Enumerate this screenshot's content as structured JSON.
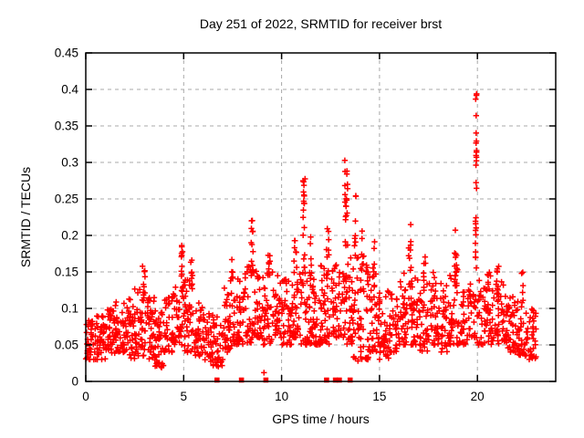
{
  "figure": {
    "title": "Day 251 of 2022, SRMTID for receiver brst",
    "xlabel": "GPS time / hours",
    "ylabel": "SRMTID / TECUs",
    "background_color": "#ffffff",
    "text_color": "#000000",
    "marker_color": "#ff0000",
    "grid_color": "#a8a8a8",
    "border_color": "#000000"
  },
  "axes": {
    "x": {
      "min": 0,
      "max": 24,
      "ticks": [
        [
          0,
          "0"
        ],
        [
          5,
          "5"
        ],
        [
          10,
          "10"
        ],
        [
          15,
          "15"
        ],
        [
          20,
          "20"
        ]
      ]
    },
    "y": {
      "min": 0,
      "max": 0.45,
      "ticks": [
        [
          0,
          "0"
        ],
        [
          0.05,
          "0.05"
        ],
        [
          0.1,
          "0.1"
        ],
        [
          0.15,
          "0.15"
        ],
        [
          0.2,
          "0.2"
        ],
        [
          0.25,
          "0.25"
        ],
        [
          0.3,
          "0.3"
        ],
        [
          0.35,
          "0.35"
        ],
        [
          0.4,
          "0.4"
        ],
        [
          0.45,
          "0.45"
        ]
      ]
    }
  },
  "chart_data": {
    "type": "scatter",
    "title": "Day 251 of 2022, SRMTID for receiver brst",
    "xlabel": "GPS time / hours",
    "ylabel": "SRMTID / TECUs",
    "xlim": [
      0,
      24
    ],
    "ylim": [
      0,
      0.45
    ],
    "grid": "dashed",
    "marker": "plus",
    "marker_color": "#ff0000",
    "baseline_bins": [
      [
        0,
        0.5,
        0.03,
        0.085,
        40
      ],
      [
        0.5,
        1,
        0.03,
        0.09,
        40
      ],
      [
        1,
        1.5,
        0.035,
        0.1,
        40
      ],
      [
        1.5,
        2,
        0.04,
        0.11,
        40
      ],
      [
        2,
        2.5,
        0.03,
        0.12,
        40
      ],
      [
        2.5,
        3,
        0.035,
        0.13,
        40
      ],
      [
        3,
        3.5,
        0.03,
        0.12,
        40
      ],
      [
        3.5,
        4,
        0.02,
        0.1,
        38
      ],
      [
        4,
        4.5,
        0.04,
        0.12,
        38
      ],
      [
        4.5,
        5,
        0.05,
        0.14,
        38
      ],
      [
        5,
        5.5,
        0.04,
        0.14,
        38
      ],
      [
        5.5,
        6,
        0.035,
        0.11,
        38
      ],
      [
        6,
        6.5,
        0.025,
        0.1,
        36
      ],
      [
        6.5,
        7,
        0.02,
        0.09,
        34
      ],
      [
        7,
        7.5,
        0.04,
        0.13,
        36
      ],
      [
        7.5,
        8,
        0.05,
        0.15,
        38
      ],
      [
        8,
        8.5,
        0.05,
        0.16,
        38
      ],
      [
        8.5,
        9,
        0.06,
        0.16,
        38
      ],
      [
        9,
        9.5,
        0.05,
        0.15,
        36
      ],
      [
        9.5,
        10,
        0.06,
        0.15,
        36
      ],
      [
        10,
        10.5,
        0.05,
        0.14,
        38
      ],
      [
        10.5,
        11,
        0.06,
        0.16,
        38
      ],
      [
        11,
        11.5,
        0.05,
        0.15,
        36
      ],
      [
        11.5,
        12,
        0.05,
        0.14,
        38
      ],
      [
        12,
        12.5,
        0.05,
        0.16,
        38
      ],
      [
        12.5,
        13,
        0.06,
        0.16,
        38
      ],
      [
        13,
        13.5,
        0.05,
        0.17,
        36
      ],
      [
        13.5,
        14,
        0.03,
        0.18,
        38
      ],
      [
        14,
        14.5,
        0.03,
        0.16,
        38
      ],
      [
        14.5,
        15,
        0.04,
        0.17,
        36
      ],
      [
        15,
        15.5,
        0.03,
        0.13,
        36
      ],
      [
        15.5,
        16,
        0.04,
        0.12,
        36
      ],
      [
        16,
        16.5,
        0.05,
        0.15,
        36
      ],
      [
        16.5,
        17,
        0.05,
        0.16,
        36
      ],
      [
        17,
        17.5,
        0.04,
        0.14,
        36
      ],
      [
        17.5,
        18,
        0.05,
        0.15,
        36
      ],
      [
        18,
        18.5,
        0.04,
        0.14,
        36
      ],
      [
        18.5,
        19,
        0.05,
        0.16,
        36
      ],
      [
        19,
        19.5,
        0.05,
        0.13,
        34
      ],
      [
        19.5,
        20,
        0.06,
        0.14,
        30
      ],
      [
        20,
        20.5,
        0.05,
        0.14,
        36
      ],
      [
        20.5,
        21,
        0.05,
        0.15,
        36
      ],
      [
        21,
        21.5,
        0.05,
        0.14,
        36
      ],
      [
        21.5,
        22,
        0.04,
        0.12,
        36
      ],
      [
        22,
        22.5,
        0.035,
        0.11,
        36
      ],
      [
        22.5,
        23,
        0.03,
        0.1,
        36
      ]
    ],
    "spikes": [
      [
        2.95,
        0.11,
        0.175,
        9,
        0.15
      ],
      [
        4.92,
        0.12,
        0.19,
        12,
        0.12
      ],
      [
        5.4,
        0.12,
        0.175,
        7,
        0.1
      ],
      [
        7.45,
        0.13,
        0.175,
        7,
        0.12
      ],
      [
        8.5,
        0.15,
        0.235,
        11,
        0.1
      ],
      [
        9.35,
        0.13,
        0.19,
        8,
        0.12
      ],
      [
        10.7,
        0.13,
        0.2,
        8,
        0.15
      ],
      [
        11.15,
        0.15,
        0.3,
        18,
        0.1
      ],
      [
        11.5,
        0.14,
        0.22,
        7,
        0.08
      ],
      [
        12.35,
        0.13,
        0.25,
        10,
        0.12
      ],
      [
        13.3,
        0.18,
        0.308,
        20,
        0.15
      ],
      [
        13.75,
        0.17,
        0.26,
        8,
        0.1
      ],
      [
        14.15,
        0.12,
        0.21,
        8,
        0.12
      ],
      [
        14.7,
        0.12,
        0.195,
        8,
        0.1
      ],
      [
        16.55,
        0.12,
        0.225,
        11,
        0.12
      ],
      [
        17.3,
        0.12,
        0.18,
        7,
        0.1
      ],
      [
        18.9,
        0.13,
        0.22,
        12,
        0.12
      ],
      [
        19.93,
        0.15,
        0.421,
        26,
        0.06
      ],
      [
        21.05,
        0.1,
        0.16,
        10,
        0.12
      ],
      [
        22.3,
        0.09,
        0.15,
        7,
        0.1
      ]
    ],
    "outliers": [
      [
        3.87,
        0.019
      ],
      [
        9.1,
        0.012
      ],
      [
        13.9,
        0.028
      ],
      [
        22.8,
        0.032
      ]
    ],
    "zero_value_markers": {
      "marker": "filled-square",
      "color": "#ff0000",
      "x": [
        6.7,
        7.95,
        9.2,
        12.3,
        12.75,
        12.95,
        13.5
      ]
    }
  }
}
